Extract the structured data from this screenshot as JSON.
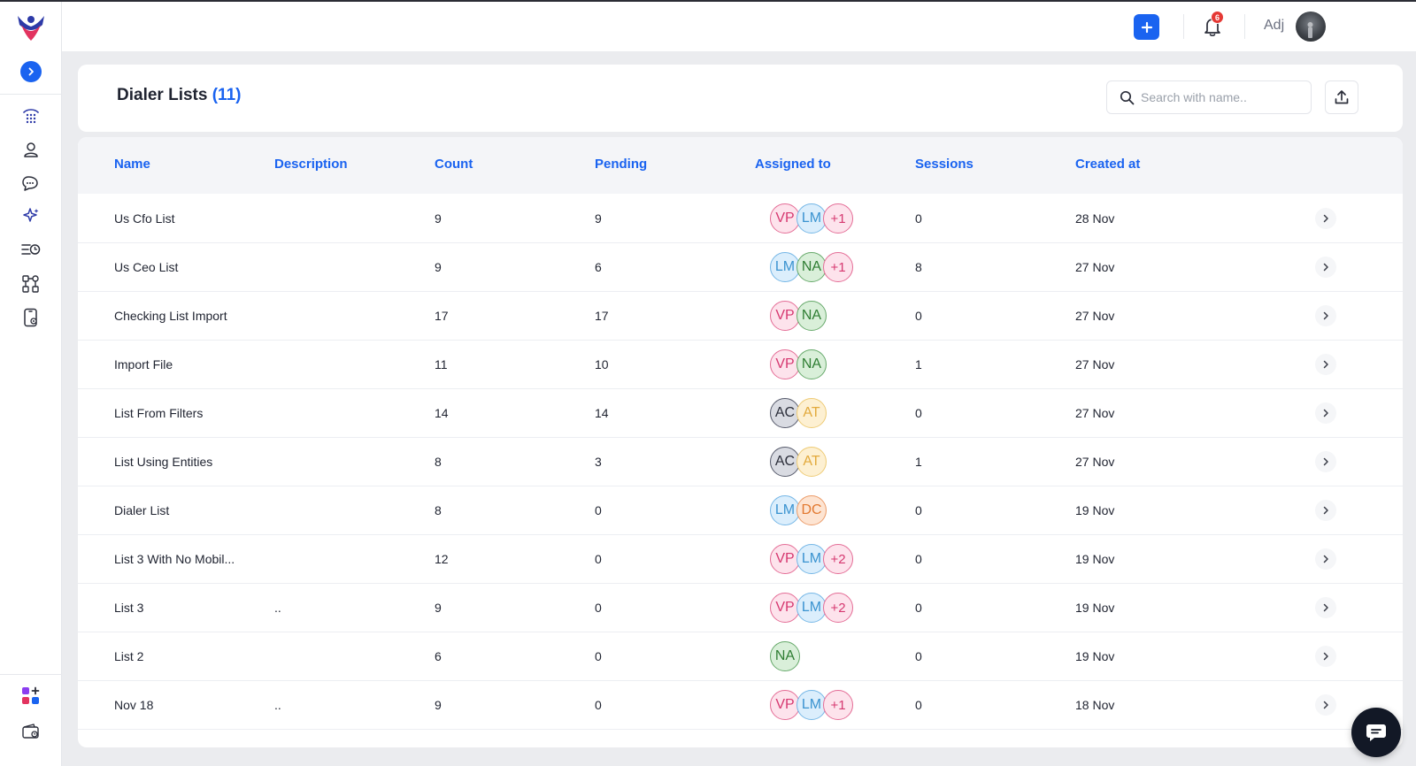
{
  "header": {
    "user_name": "Adj",
    "notification_count": "6"
  },
  "sidebar": {
    "nav_icons": [
      "dialer-icon",
      "contacts-icon",
      "conversations-icon",
      "ai-sparkle-icon",
      "queue-history-icon",
      "workflow-icon",
      "mobile-settings-icon"
    ],
    "bottom_icons": [
      "add-apps-icon",
      "wallet-icon"
    ]
  },
  "page": {
    "title": "Dialer Lists",
    "count_label": "(11)",
    "search_placeholder": "Search with name.."
  },
  "table": {
    "columns": [
      "Name",
      "Description",
      "Count",
      "Pending",
      "Assigned to",
      "Sessions",
      "Created at"
    ],
    "rows": [
      {
        "name": "Us Cfo List",
        "description": "",
        "count": "9",
        "pending": "9",
        "assigned": [
          "VP",
          "LM"
        ],
        "more": "+1",
        "sessions": "0",
        "created": "28 Nov"
      },
      {
        "name": "Us Ceo List",
        "description": "",
        "count": "9",
        "pending": "6",
        "assigned": [
          "LM",
          "NA"
        ],
        "more": "+1",
        "sessions": "8",
        "created": "27 Nov"
      },
      {
        "name": "Checking List Import",
        "description": "",
        "count": "17",
        "pending": "17",
        "assigned": [
          "VP",
          "NA"
        ],
        "more": "",
        "sessions": "0",
        "created": "27 Nov"
      },
      {
        "name": "Import File",
        "description": "",
        "count": "11",
        "pending": "10",
        "assigned": [
          "VP",
          "NA"
        ],
        "more": "",
        "sessions": "1",
        "created": "27 Nov"
      },
      {
        "name": "List From Filters",
        "description": "",
        "count": "14",
        "pending": "14",
        "assigned": [
          "AC",
          "AT"
        ],
        "more": "",
        "sessions": "0",
        "created": "27 Nov"
      },
      {
        "name": "List Using Entities",
        "description": "",
        "count": "8",
        "pending": "3",
        "assigned": [
          "AC",
          "AT"
        ],
        "more": "",
        "sessions": "1",
        "created": "27 Nov"
      },
      {
        "name": "Dialer List",
        "description": "",
        "count": "8",
        "pending": "0",
        "assigned": [
          "LM",
          "DC"
        ],
        "more": "",
        "sessions": "0",
        "created": "19 Nov"
      },
      {
        "name": "List 3 With No Mobil...",
        "description": "",
        "count": "12",
        "pending": "0",
        "assigned": [
          "VP",
          "LM"
        ],
        "more": "+2",
        "sessions": "0",
        "created": "19 Nov"
      },
      {
        "name": "List 3",
        "description": "..",
        "count": "9",
        "pending": "0",
        "assigned": [
          "VP",
          "LM"
        ],
        "more": "+2",
        "sessions": "0",
        "created": "19 Nov"
      },
      {
        "name": "List 2",
        "description": "",
        "count": "6",
        "pending": "0",
        "assigned": [
          "NA"
        ],
        "more": "",
        "sessions": "0",
        "created": "19 Nov"
      },
      {
        "name": "Nov 18",
        "description": "..",
        "count": "9",
        "pending": "0",
        "assigned": [
          "VP",
          "LM"
        ],
        "more": "+1",
        "sessions": "0",
        "created": "18 Nov"
      }
    ]
  },
  "colors": {
    "accent": "#1a63f0",
    "badge": "#e53935",
    "fab": "#121826"
  }
}
